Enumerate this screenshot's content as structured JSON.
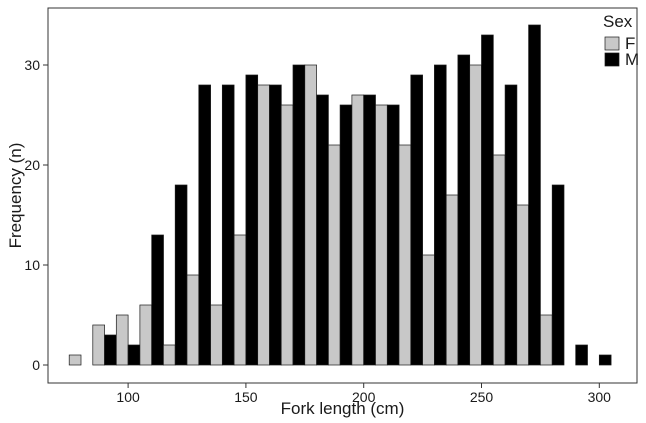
{
  "chart_data": {
    "type": "bar",
    "xlabel": "Fork length (cm)",
    "ylabel": "Frequency (n)",
    "xlim": [
      66,
      316
    ],
    "ylim": [
      -1.8,
      35.7
    ],
    "xticks": [
      100,
      150,
      200,
      250,
      300
    ],
    "yticks": [
      0,
      10,
      20,
      30
    ],
    "bin_width": 10,
    "grid": false,
    "legend": {
      "title": "Sex",
      "placement": "top-right"
    },
    "x": [
      80,
      90,
      100,
      110,
      120,
      130,
      140,
      150,
      160,
      170,
      180,
      190,
      200,
      210,
      220,
      230,
      240,
      250,
      260,
      270,
      280,
      290,
      300
    ],
    "series": [
      {
        "name": "F",
        "color": "#c8c8c8",
        "values": [
          1,
          4,
          5,
          6,
          2,
          9,
          6,
          13,
          28,
          26,
          30,
          22,
          27,
          26,
          22,
          11,
          17,
          30,
          21,
          16,
          5,
          0,
          0
        ]
      },
      {
        "name": "M",
        "color": "#000000",
        "values": [
          0,
          3,
          2,
          13,
          18,
          28,
          28,
          29,
          28,
          30,
          27,
          26,
          27,
          26,
          29,
          30,
          31,
          33,
          28,
          34,
          18,
          2,
          1
        ]
      }
    ]
  }
}
